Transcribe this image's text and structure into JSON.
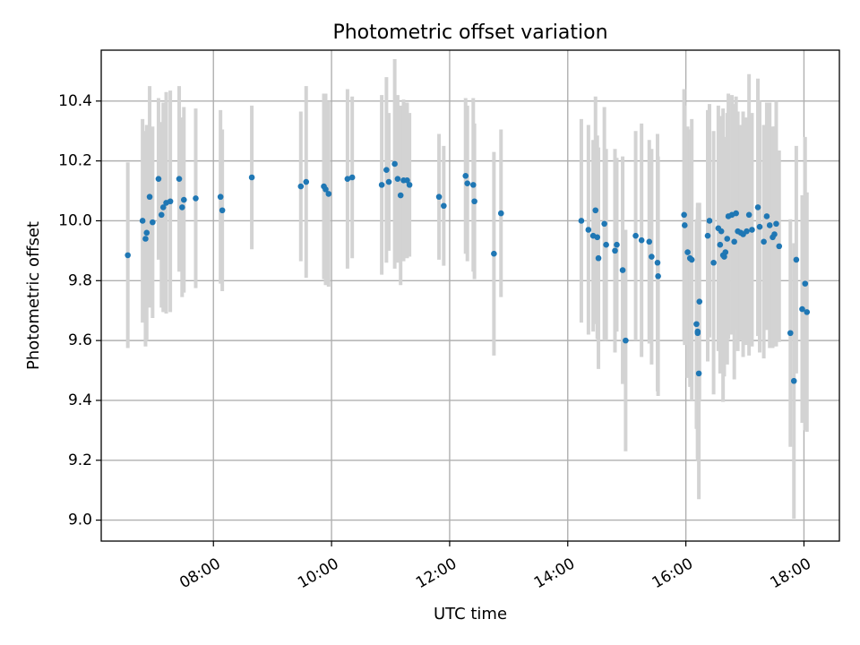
{
  "chart_data": {
    "type": "scatter",
    "title": "Photometric offset variation",
    "xlabel": "UTC time",
    "ylabel": "Photometric offset",
    "xlim_hours": [
      6.1,
      18.6
    ],
    "ylim": [
      8.93,
      10.57
    ],
    "xticks": [
      {
        "hour": 8,
        "label": "08:00"
      },
      {
        "hour": 10,
        "label": "10:00"
      },
      {
        "hour": 12,
        "label": "12:00"
      },
      {
        "hour": 14,
        "label": "14:00"
      },
      {
        "hour": 16,
        "label": "16:00"
      },
      {
        "hour": 18,
        "label": "18:00"
      }
    ],
    "yticks": [
      {
        "value": 9.0,
        "label": "9.0"
      },
      {
        "value": 9.2,
        "label": "9.2"
      },
      {
        "value": 9.4,
        "label": "9.4"
      },
      {
        "value": 9.6,
        "label": "9.6"
      },
      {
        "value": 9.8,
        "label": "9.8"
      },
      {
        "value": 10.0,
        "label": "10.0"
      },
      {
        "value": 10.2,
        "label": "10.2"
      },
      {
        "value": 10.4,
        "label": "10.4"
      }
    ],
    "grid": true,
    "point_color": "#1f77b4",
    "errorbar_color": "#d3d3d3",
    "series": [
      {
        "x_hours": [
          6.55,
          6.8,
          6.85,
          6.87,
          6.92,
          6.97,
          7.07,
          7.12,
          7.15,
          7.2,
          7.27,
          7.42,
          7.47,
          7.5,
          7.7,
          8.12,
          8.15,
          8.65,
          9.48,
          9.57,
          9.87,
          9.9,
          9.95,
          10.27,
          10.35,
          10.85,
          10.93,
          10.97,
          11.07,
          11.12,
          11.17,
          11.22,
          11.28,
          11.32,
          11.82,
          11.9,
          12.27,
          12.3,
          12.4,
          12.42,
          12.75,
          12.87,
          14.23,
          14.35,
          14.43,
          14.47,
          14.5,
          14.52,
          14.62,
          14.65,
          14.8,
          14.83,
          14.93,
          14.98,
          15.15,
          15.25,
          15.38,
          15.42,
          15.52,
          15.53,
          15.97,
          15.98,
          16.03,
          16.07,
          16.1,
          16.18,
          16.2,
          16.2,
          16.22,
          16.23,
          16.37,
          16.4,
          16.47,
          16.55,
          16.58,
          16.6,
          16.63,
          16.65,
          16.67,
          16.7,
          16.72,
          16.78,
          16.82,
          16.85,
          16.88,
          16.93,
          16.97,
          17.03,
          17.07,
          17.12,
          17.22,
          17.25,
          17.32,
          17.37,
          17.42,
          17.47,
          17.5,
          17.53,
          17.58,
          17.77,
          17.83,
          17.87,
          17.97,
          18.02,
          18.05
        ],
        "y": [
          9.885,
          10.0,
          9.94,
          9.96,
          10.08,
          9.995,
          10.14,
          10.02,
          10.045,
          10.06,
          10.065,
          10.14,
          10.045,
          10.07,
          10.075,
          10.08,
          10.035,
          10.145,
          10.115,
          10.13,
          10.115,
          10.105,
          10.09,
          10.14,
          10.145,
          10.12,
          10.17,
          10.13,
          10.19,
          10.14,
          10.085,
          10.135,
          10.135,
          10.12,
          10.08,
          10.05,
          10.15,
          10.125,
          10.12,
          10.065,
          9.89,
          10.025,
          10.0,
          9.97,
          9.95,
          10.035,
          9.945,
          9.875,
          9.99,
          9.92,
          9.9,
          9.92,
          9.835,
          9.6,
          9.95,
          9.935,
          9.93,
          9.88,
          9.86,
          9.815,
          10.02,
          9.985,
          9.895,
          9.875,
          9.87,
          9.655,
          9.625,
          9.63,
          9.49,
          9.73,
          9.95,
          10.0,
          9.86,
          9.975,
          9.92,
          9.965,
          9.885,
          9.88,
          9.895,
          9.94,
          10.015,
          10.02,
          9.93,
          10.025,
          9.965,
          9.96,
          9.955,
          9.965,
          10.02,
          9.97,
          10.045,
          9.98,
          9.93,
          10.015,
          9.985,
          9.945,
          9.955,
          9.99,
          9.915,
          9.625,
          9.465,
          9.87,
          9.705,
          9.79,
          9.695
        ],
        "yerr_low": [
          0.31,
          0.34,
          0.36,
          0.36,
          0.37,
          0.32,
          0.27,
          0.31,
          0.35,
          0.37,
          0.37,
          0.31,
          0.3,
          0.31,
          0.3,
          0.29,
          0.27,
          0.24,
          0.25,
          0.32,
          0.31,
          0.32,
          0.31,
          0.3,
          0.27,
          0.3,
          0.31,
          0.23,
          0.35,
          0.28,
          0.3,
          0.27,
          0.26,
          0.24,
          0.21,
          0.2,
          0.26,
          0.26,
          0.29,
          0.26,
          0.34,
          0.28,
          0.34,
          0.35,
          0.32,
          0.38,
          0.34,
          0.37,
          0.39,
          0.32,
          0.34,
          0.29,
          0.38,
          0.37,
          0.35,
          0.39,
          0.34,
          0.36,
          0.43,
          0.4,
          0.42,
          0.4,
          0.42,
          0.43,
          0.47,
          0.35,
          0.42,
          0.43,
          0.42,
          0.33,
          0.42,
          0.39,
          0.44,
          0.41,
          0.43,
          0.38,
          0.49,
          0.4,
          0.33,
          0.42,
          0.41,
          0.4,
          0.46,
          0.39,
          0.4,
          0.36,
          0.41,
          0.38,
          0.47,
          0.39,
          0.43,
          0.42,
          0.39,
          0.38,
          0.41,
          0.37,
          0.36,
          0.41,
          0.32,
          0.38,
          0.46,
          0.38,
          0.38,
          0.49,
          0.4
        ],
        "yerr_high": [
          0.31,
          0.34,
          0.36,
          0.36,
          0.37,
          0.32,
          0.27,
          0.31,
          0.35,
          0.37,
          0.37,
          0.31,
          0.3,
          0.31,
          0.3,
          0.29,
          0.27,
          0.24,
          0.25,
          0.32,
          0.31,
          0.32,
          0.31,
          0.3,
          0.27,
          0.3,
          0.31,
          0.23,
          0.35,
          0.28,
          0.3,
          0.27,
          0.26,
          0.24,
          0.21,
          0.2,
          0.26,
          0.26,
          0.29,
          0.26,
          0.34,
          0.28,
          0.34,
          0.35,
          0.32,
          0.38,
          0.34,
          0.37,
          0.39,
          0.32,
          0.34,
          0.29,
          0.38,
          0.37,
          0.35,
          0.39,
          0.34,
          0.36,
          0.43,
          0.4,
          0.42,
          0.4,
          0.42,
          0.43,
          0.47,
          0.35,
          0.42,
          0.43,
          0.42,
          0.33,
          0.42,
          0.39,
          0.44,
          0.41,
          0.43,
          0.38,
          0.49,
          0.4,
          0.33,
          0.42,
          0.41,
          0.4,
          0.46,
          0.39,
          0.4,
          0.36,
          0.41,
          0.38,
          0.47,
          0.39,
          0.43,
          0.42,
          0.39,
          0.38,
          0.41,
          0.37,
          0.36,
          0.41,
          0.32,
          0.38,
          0.46,
          0.38,
          0.38,
          0.49,
          0.4
        ]
      }
    ]
  }
}
